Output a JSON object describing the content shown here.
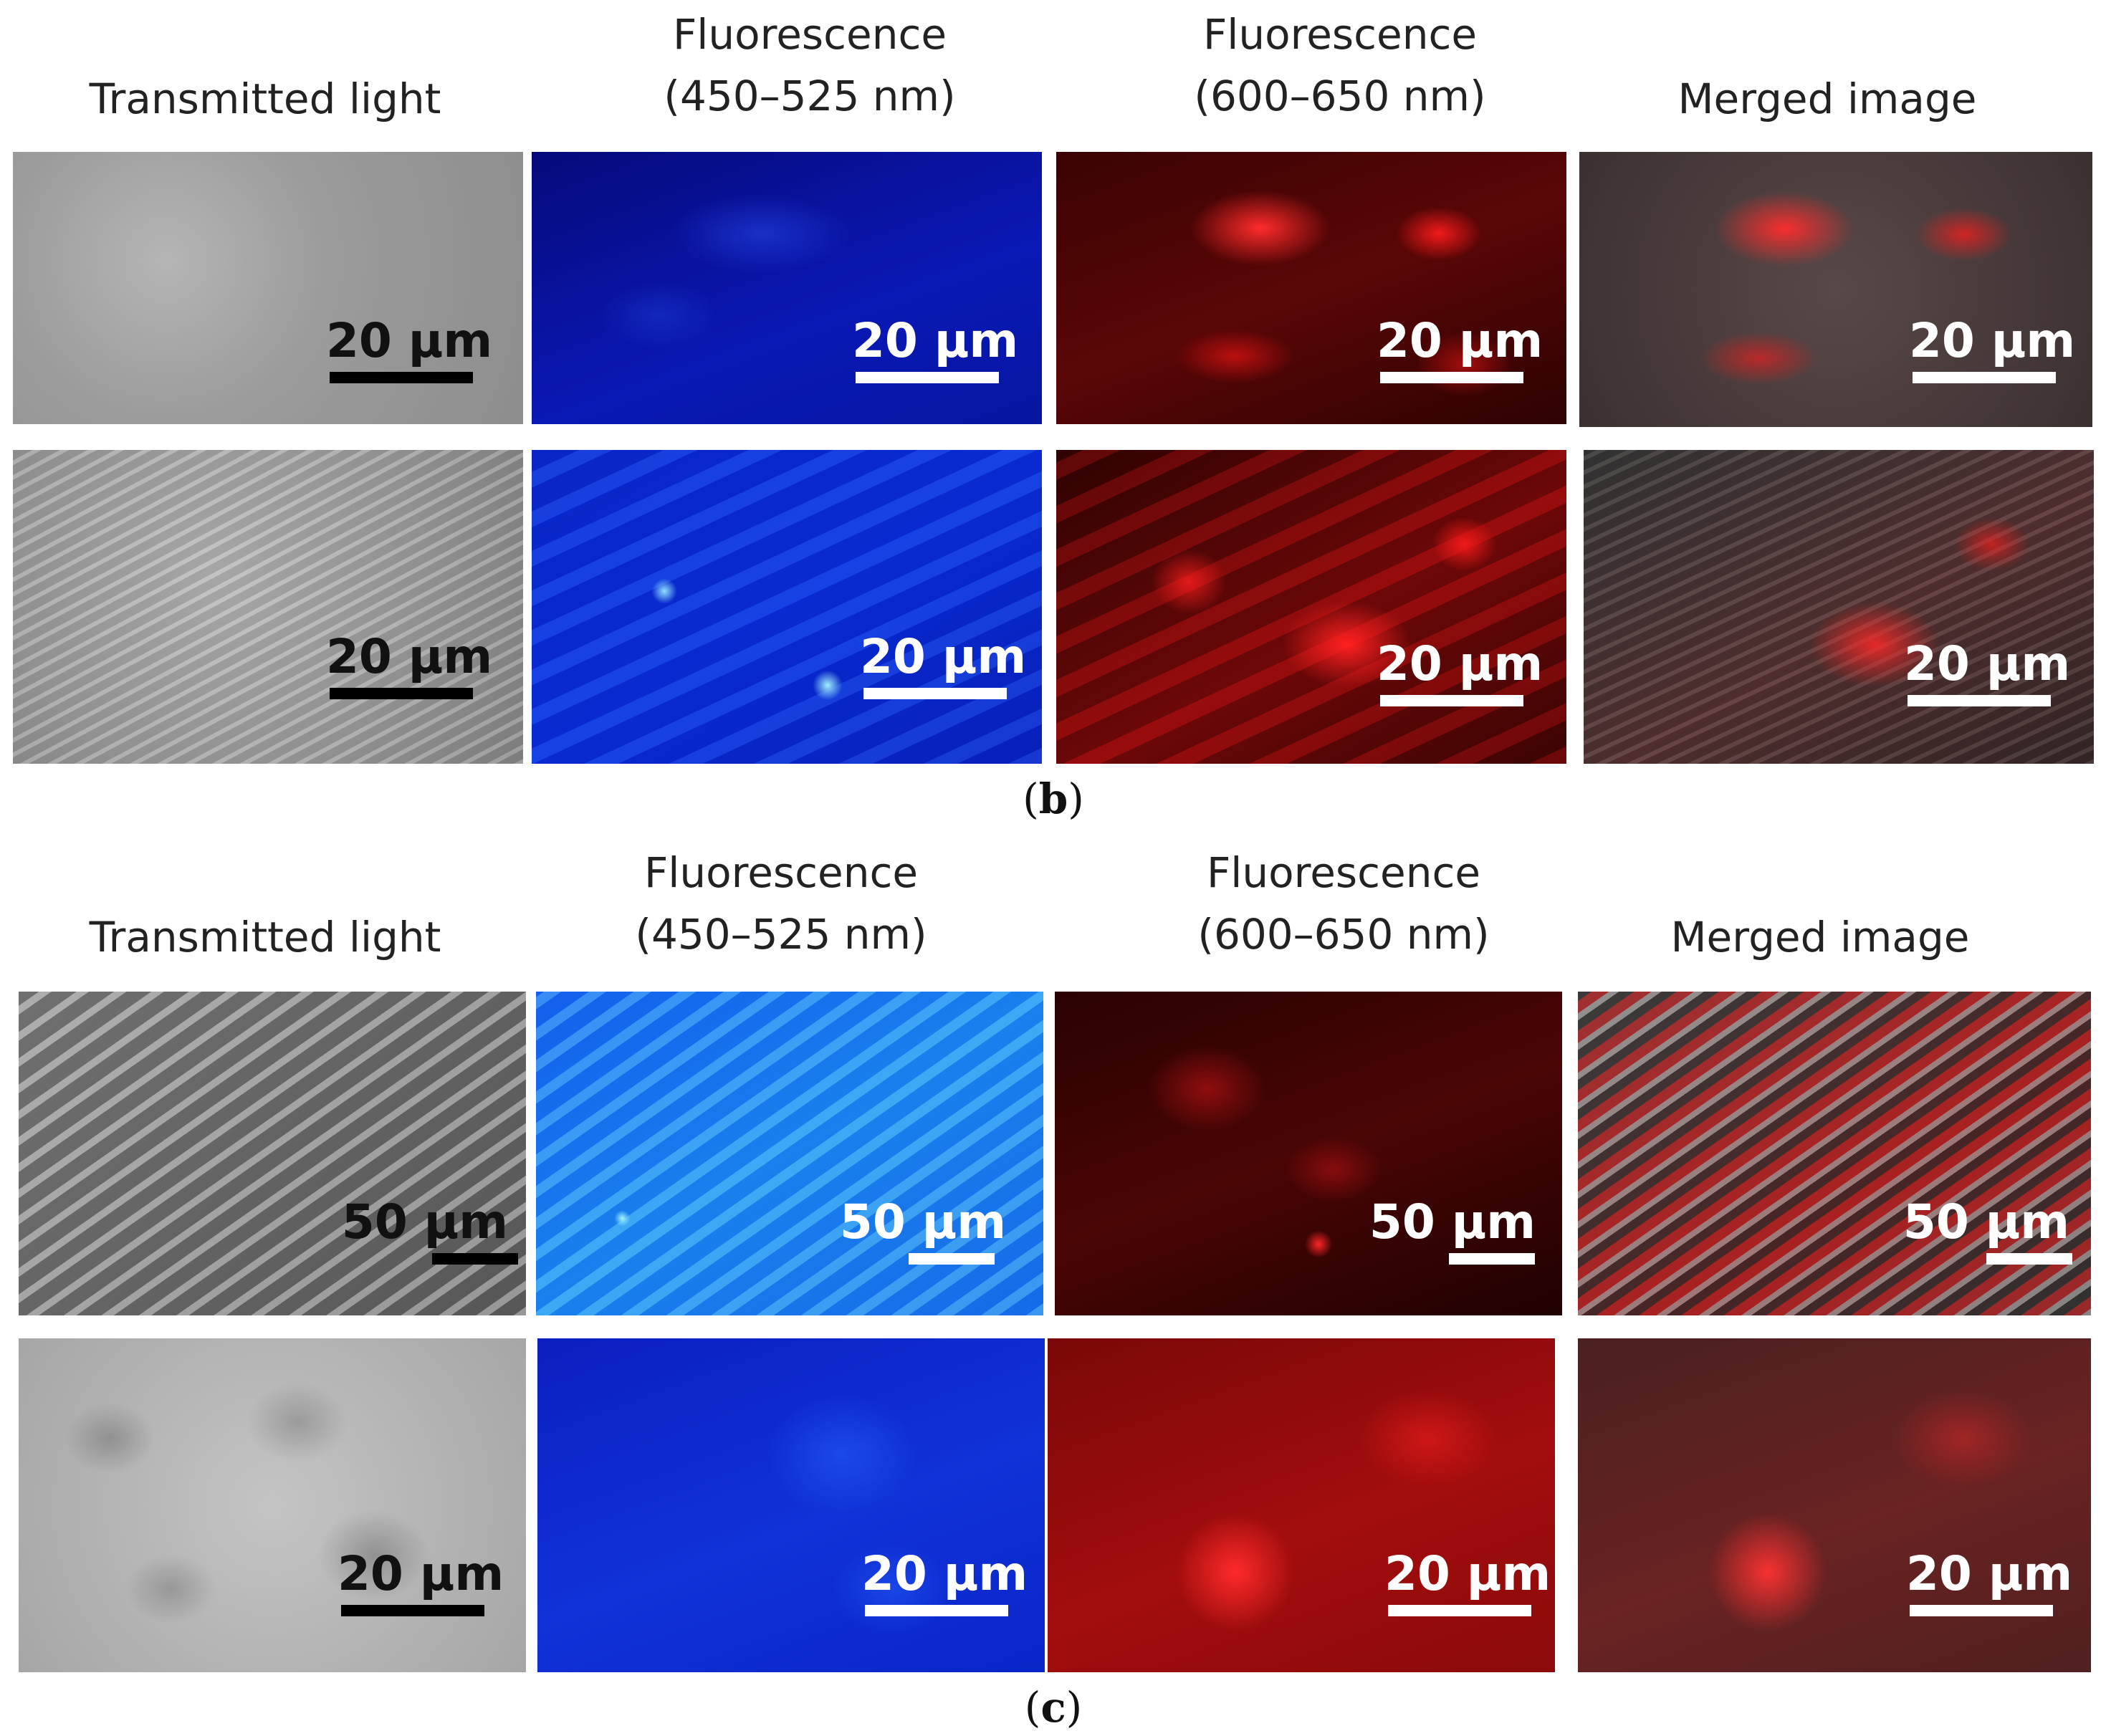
{
  "section_b": {
    "headers": {
      "transmitted": "Transmitted light",
      "fluor_blue_1": "Fluorescence",
      "fluor_blue_2": "(450–525 nm)",
      "fluor_red_1": "Fluorescence",
      "fluor_red_2": "(600–650 nm)",
      "merged": "Merged image"
    },
    "row1": {
      "tl": "20 µm",
      "blue": "20 µm",
      "red": "20 µm",
      "merged": "20 µm"
    },
    "row2": {
      "tl": "20 µm",
      "blue": "20 µm",
      "red": "20 µm",
      "merged": "20 µm"
    },
    "caption_open": "(",
    "caption_letter": "b",
    "caption_close": ")"
  },
  "section_c": {
    "headers": {
      "transmitted": "Transmitted light",
      "fluor_blue_1": "Fluorescence",
      "fluor_blue_2": "(450–525 nm)",
      "fluor_red_1": "Fluorescence",
      "fluor_red_2": "(600–650 nm)",
      "merged": "Merged image"
    },
    "row1": {
      "tl": "50 µm",
      "blue": "50 µm",
      "red": "50 µm",
      "merged": "50 µm"
    },
    "row2": {
      "tl": "20 µm",
      "blue": "20 µm",
      "red": "20 µm",
      "merged": "20 µm"
    },
    "caption_open": "(",
    "caption_letter": "c",
    "caption_close": ")"
  },
  "colors": {
    "background": "#ffffff",
    "blue_channel": "#0a30dc",
    "red_channel": "#ff2020"
  }
}
